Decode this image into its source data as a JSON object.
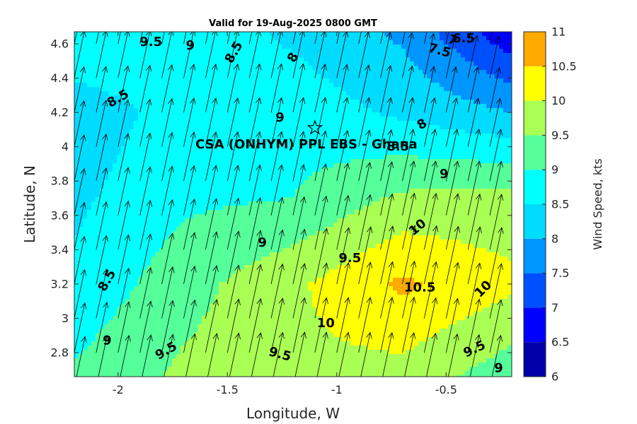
{
  "chart_data": {
    "type": "contour",
    "title": "Valid for 19-Aug-2025 0800 GMT",
    "xlabel": "Longitude, W",
    "ylabel": "Latitude, N",
    "colorbar_label": "Wind Speed, kts",
    "xlim": [
      -2.2,
      -0.2
    ],
    "ylim": [
      2.66,
      4.67
    ],
    "x_ticks": [
      -2,
      -1.5,
      -1,
      -0.5
    ],
    "x_tick_labels": [
      "-2",
      "-1.5",
      "-1",
      "-0.5"
    ],
    "y_ticks": [
      2.8,
      3,
      3.2,
      3.4,
      3.6,
      3.8,
      4,
      4.2,
      4.4,
      4.6
    ],
    "y_tick_labels": [
      "2.8",
      "3",
      "3.2",
      "3.4",
      "3.6",
      "3.8",
      "4",
      "4.2",
      "4.4",
      "4.6"
    ],
    "levels": [
      6,
      6.5,
      7,
      7.5,
      8,
      8.5,
      9,
      9.5,
      10,
      10.5,
      11
    ],
    "level_labels": [
      "6",
      "6.5",
      "7",
      "7.5",
      "8",
      "8.5",
      "9",
      "9.5",
      "10",
      "10.5",
      "11"
    ],
    "level_colors": [
      "#0000aa",
      "#0000ff",
      "#0050ff",
      "#0096ff",
      "#00dcff",
      "#00ffff",
      "#55ff9a",
      "#aaff55",
      "#ffff00",
      "#ffaa00",
      "#ff5500"
    ],
    "grid_x": [
      -2.2,
      -1.7,
      -1.2,
      -0.7,
      -0.2
    ],
    "grid_y": [
      2.66,
      3.2,
      3.7,
      4.2,
      4.67
    ],
    "wind_speed": [
      [
        9.1,
        9.6,
        9.9,
        9.8,
        9.2
      ],
      [
        8.6,
        9.3,
        9.9,
        10.6,
        10.1
      ],
      [
        8.4,
        8.9,
        9.0,
        9.6,
        9.7
      ],
      [
        8.2,
        8.7,
        8.8,
        8.4,
        8.0
      ],
      [
        9.0,
        8.8,
        8.4,
        7.9,
        6.6
      ]
    ],
    "contour_labels": [
      {
        "text": "9.5",
        "x": -1.85,
        "y": 4.61,
        "angle": 0
      },
      {
        "text": "9",
        "x": -1.67,
        "y": 4.59,
        "angle": 0
      },
      {
        "text": "8.5",
        "x": -1.47,
        "y": 4.55,
        "angle": -60
      },
      {
        "text": "8",
        "x": -1.2,
        "y": 4.52,
        "angle": -60
      },
      {
        "text": "7.5",
        "x": -0.53,
        "y": 4.56,
        "angle": 15
      },
      {
        "text": "7",
        "x": -0.47,
        "y": 4.62,
        "angle": 20
      },
      {
        "text": "6.5",
        "x": -0.42,
        "y": 4.63,
        "angle": 0
      },
      {
        "text": "8.5",
        "x": -2.0,
        "y": 4.28,
        "angle": -30
      },
      {
        "text": "9",
        "x": -1.26,
        "y": 4.17,
        "angle": 0
      },
      {
        "text": "8",
        "x": -0.61,
        "y": 4.13,
        "angle": -30
      },
      {
        "text": "8.5",
        "x": -0.72,
        "y": 4.0,
        "angle": 0
      },
      {
        "text": "9",
        "x": -0.51,
        "y": 3.84,
        "angle": 0
      },
      {
        "text": "10",
        "x": -0.63,
        "y": 3.53,
        "angle": -40
      },
      {
        "text": "9",
        "x": -1.34,
        "y": 3.44,
        "angle": 0
      },
      {
        "text": "9.5",
        "x": -0.94,
        "y": 3.35,
        "angle": 0
      },
      {
        "text": "8.5",
        "x": -2.05,
        "y": 3.22,
        "angle": -60
      },
      {
        "text": "10.5",
        "x": -0.62,
        "y": 3.18,
        "angle": 0
      },
      {
        "text": "10",
        "x": -0.33,
        "y": 3.17,
        "angle": -45
      },
      {
        "text": "10",
        "x": -1.05,
        "y": 2.97,
        "angle": 0
      },
      {
        "text": "9",
        "x": -2.05,
        "y": 2.87,
        "angle": 0
      },
      {
        "text": "9.5",
        "x": -1.78,
        "y": 2.81,
        "angle": -30
      },
      {
        "text": "9.5",
        "x": -1.26,
        "y": 2.79,
        "angle": 15
      },
      {
        "text": "9.5",
        "x": -0.37,
        "y": 2.82,
        "angle": -25
      },
      {
        "text": "9",
        "x": -0.26,
        "y": 2.71,
        "angle": 0
      }
    ],
    "station": {
      "name": "CSA (ONHYM) PPL EBS - Ghana",
      "x": -1.1,
      "y": 4.11
    },
    "wind_vectors": {
      "spacing_lon": 0.1,
      "spacing_lat": 0.2,
      "direction": "toward north-north-east"
    }
  }
}
